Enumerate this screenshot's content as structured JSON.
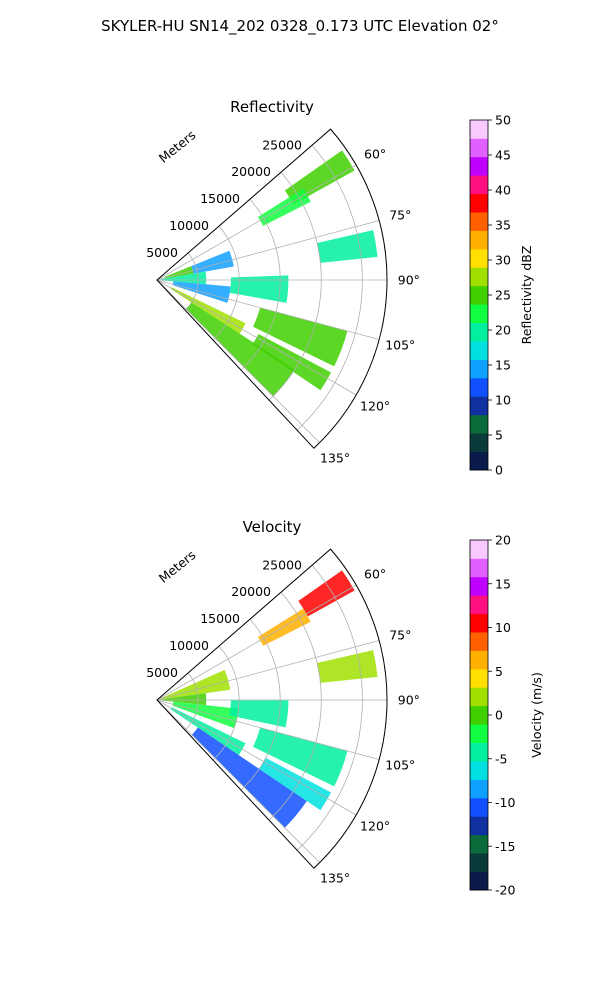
{
  "figure": {
    "suptitle": "SKYLER-HU  SN14_202  0328_0.173 UTC Elevation 02°"
  },
  "chart_data": [
    {
      "type": "heatmap",
      "title": "Reflectivity",
      "range_label": "Meters",
      "range_ticks": [
        5000,
        10000,
        15000,
        20000,
        25000
      ],
      "range_tick_labels": [
        "5000",
        "10000",
        "15000",
        "20000",
        "25000"
      ],
      "azimuth_range": [
        49,
        137
      ],
      "azimuth_ticks": [
        60,
        75,
        90,
        105,
        120,
        135
      ],
      "azimuth_tick_labels": [
        "60°",
        "75°",
        "90°",
        "105°",
        "120°",
        "135°"
      ],
      "max_range": 28000,
      "grid": true,
      "colorbar": {
        "label": "Reflectivity dBZ",
        "min": 0,
        "max": 50,
        "ticks": [
          0,
          5,
          10,
          15,
          20,
          25,
          30,
          35,
          40,
          45,
          50
        ],
        "tick_labels": [
          "0",
          "5",
          "10",
          "15",
          "20",
          "25",
          "30",
          "35",
          "40",
          "45",
          "50"
        ],
        "colors": [
          "#0a1a4a",
          "#0b3a3a",
          "#0a6a3a",
          "#1030a0",
          "#1050ff",
          "#10a0ff",
          "#00e0e0",
          "#00f0a0",
          "#10ff40",
          "#40d000",
          "#a0e000",
          "#ffe000",
          "#ffb000",
          "#ff6000",
          "#ff0000",
          "#ff1080",
          "#c000ff",
          "#e060ff",
          "#f8c8ff"
        ]
      },
      "echoes": [
        {
          "az": [
            55,
            61
          ],
          "r": [
            19000,
            27500
          ],
          "value": 25
        },
        {
          "az": [
            58,
            63
          ],
          "r": [
            14500,
            21000
          ],
          "value": 22
        },
        {
          "az": [
            68,
            80
          ],
          "r": [
            4500,
            9500
          ],
          "value": 15
        },
        {
          "az": [
            68,
            80
          ],
          "r": [
            1000,
            4500
          ],
          "value": 24
        },
        {
          "az": [
            80,
            95
          ],
          "r": [
            500,
            6000
          ],
          "value": 21
        },
        {
          "az": [
            95,
            108
          ],
          "r": [
            2000,
            9000
          ],
          "value": 14
        },
        {
          "az": [
            88,
            100
          ],
          "r": [
            9000,
            16000
          ],
          "value": 20
        },
        {
          "az": [
            77,
            84
          ],
          "r": [
            20000,
            27000
          ],
          "value": 20
        },
        {
          "az": [
            105,
            116
          ],
          "r": [
            13000,
            24000
          ],
          "value": 24
        },
        {
          "az": [
            116,
            123
          ],
          "r": [
            2000,
            12000
          ],
          "value": 27
        },
        {
          "az": [
            123,
            135
          ],
          "r": [
            5000,
            20000
          ],
          "value": 26
        },
        {
          "az": [
            118,
            124
          ],
          "r": [
            14000,
            24000
          ],
          "value": 25
        }
      ]
    },
    {
      "type": "heatmap",
      "title": "Velocity",
      "range_label": "Meters",
      "range_ticks": [
        5000,
        10000,
        15000,
        20000,
        25000
      ],
      "range_tick_labels": [
        "5000",
        "10000",
        "15000",
        "20000",
        "25000"
      ],
      "azimuth_range": [
        49,
        137
      ],
      "azimuth_ticks": [
        60,
        75,
        90,
        105,
        120,
        135
      ],
      "azimuth_tick_labels": [
        "60°",
        "75°",
        "90°",
        "105°",
        "120°",
        "135°"
      ],
      "max_range": 28000,
      "grid": true,
      "colorbar": {
        "label": "Velocity (m/s)",
        "min": -20,
        "max": 20,
        "ticks": [
          -20,
          -15,
          -10,
          -5,
          0,
          5,
          10,
          15,
          20
        ],
        "tick_labels": [
          "-20",
          "-15",
          "-10",
          "-5",
          "0",
          "5",
          "10",
          "15",
          "20"
        ],
        "colors": [
          "#0a1a4a",
          "#0b3a3a",
          "#0a6a3a",
          "#1030a0",
          "#1050ff",
          "#10a0ff",
          "#00e0e0",
          "#00f0a0",
          "#10ff40",
          "#40d000",
          "#a0e000",
          "#ffe000",
          "#ffb000",
          "#ff6000",
          "#ff0000",
          "#ff1080",
          "#c000ff",
          "#e060ff",
          "#f8c8ff"
        ]
      },
      "echoes": [
        {
          "az": [
            55,
            61
          ],
          "r": [
            21000,
            27500
          ],
          "value": 11
        },
        {
          "az": [
            58,
            63
          ],
          "r": [
            14500,
            21000
          ],
          "value": 6
        },
        {
          "az": [
            66,
            82
          ],
          "r": [
            500,
            9000
          ],
          "value": 2
        },
        {
          "az": [
            82,
            96
          ],
          "r": [
            500,
            6000
          ],
          "value": 1
        },
        {
          "az": [
            96,
            110
          ],
          "r": [
            2000,
            10000
          ],
          "value": -3
        },
        {
          "az": [
            90,
            102
          ],
          "r": [
            9000,
            16000
          ],
          "value": -4
        },
        {
          "az": [
            77,
            84
          ],
          "r": [
            20000,
            27000
          ],
          "value": 3
        },
        {
          "az": [
            105,
            116
          ],
          "r": [
            13000,
            24000
          ],
          "value": -5
        },
        {
          "az": [
            116,
            124
          ],
          "r": [
            2000,
            12000
          ],
          "value": -5
        },
        {
          "az": [
            124,
            135
          ],
          "r": [
            6000,
            22000
          ],
          "value": -11
        },
        {
          "az": [
            118,
            124
          ],
          "r": [
            15000,
            24000
          ],
          "value": -7
        }
      ]
    }
  ]
}
